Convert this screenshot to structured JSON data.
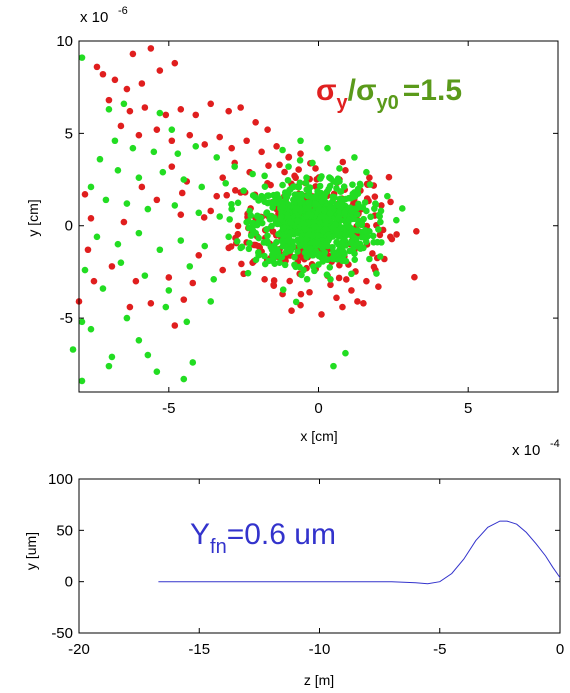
{
  "chart_data": [
    {
      "type": "scatter",
      "title": "",
      "xlabel": "x [cm]",
      "ylabel": "y [cm]",
      "x_exponent_label": "x 10",
      "x_exponent": "-4",
      "y_exponent_label": "x 10",
      "y_exponent": "-6",
      "xlim": [
        -8,
        8
      ],
      "ylim": [
        -9,
        10
      ],
      "xticks": [
        "-5",
        "0",
        "5"
      ],
      "yticks": [
        "10",
        "5",
        "0",
        "-5"
      ],
      "grid": false,
      "annotation": {
        "sigma": "σ",
        "sub_y": "y",
        "slash": "/",
        "sub_y0": "y0",
        "value": "=1.5",
        "color_red": "#e02020",
        "color_olive": "#5a9a1a"
      },
      "series": [
        {
          "color": "#e01e1e",
          "points": [
            [
              -7.4,
              8.6
            ],
            [
              -7.2,
              8.2
            ],
            [
              -6.8,
              7.9
            ],
            [
              -6.2,
              9.3
            ],
            [
              -5.6,
              9.6
            ],
            [
              -5.3,
              8.4
            ],
            [
              -4.8,
              8.8
            ],
            [
              -6.4,
              7.4
            ],
            [
              -5.9,
              7.7
            ],
            [
              -7.0,
              6.8
            ],
            [
              -6.3,
              6.2
            ],
            [
              -5.8,
              6.4
            ],
            [
              -5.1,
              6.0
            ],
            [
              -4.6,
              6.3
            ],
            [
              -4.1,
              6.0
            ],
            [
              -3.6,
              6.6
            ],
            [
              -3.0,
              6.2
            ],
            [
              -2.6,
              6.4
            ],
            [
              -2.1,
              5.6
            ],
            [
              -1.7,
              5.2
            ],
            [
              -6.6,
              5.4
            ],
            [
              -6.0,
              4.9
            ],
            [
              -5.4,
              5.2
            ],
            [
              -4.9,
              4.6
            ],
            [
              -4.3,
              4.9
            ],
            [
              -3.8,
              4.4
            ],
            [
              -3.3,
              4.8
            ],
            [
              -2.9,
              4.2
            ],
            [
              -2.4,
              4.6
            ],
            [
              -1.9,
              4.0
            ],
            [
              -1.4,
              4.3
            ],
            [
              -1.0,
              3.7
            ],
            [
              -0.6,
              3.9
            ],
            [
              -7.8,
              1.7
            ],
            [
              -8.0,
              -4.1
            ],
            [
              -7.7,
              -1.3
            ],
            [
              -7.6,
              0.4
            ],
            [
              -7.5,
              -3.0
            ],
            [
              -6.9,
              -2.2
            ],
            [
              -6.1,
              -3.0
            ],
            [
              -5.6,
              -4.2
            ],
            [
              -4.5,
              -4.0
            ],
            [
              -3.2,
              -2.4
            ],
            [
              -2.5,
              -2.6
            ],
            [
              -1.8,
              -2.9
            ],
            [
              -1.2,
              -3.7
            ],
            [
              -0.6,
              -4.3
            ],
            [
              0.1,
              -4.8
            ],
            [
              0.6,
              -3.9
            ],
            [
              1.1,
              -3.5
            ],
            [
              1.6,
              -3.0
            ],
            [
              1.9,
              -2.4
            ],
            [
              2.2,
              -1.8
            ],
            [
              2.0,
              -3.3
            ],
            [
              1.3,
              -4.1
            ],
            [
              0.4,
              -3.2
            ],
            [
              -0.3,
              -3.6
            ],
            [
              -1.5,
              -3.2
            ],
            [
              -2.2,
              -2.0
            ],
            [
              -5.0,
              -2.8
            ],
            [
              -4.8,
              -5.4
            ],
            [
              -6.3,
              -4.4
            ],
            [
              -4.0,
              -1.6
            ],
            [
              -3.6,
              0.8
            ],
            [
              -3.2,
              2.6
            ],
            [
              -2.8,
              3.4
            ],
            [
              -2.6,
              1.8
            ],
            [
              -2.3,
              2.9
            ],
            [
              -2.1,
              0.4
            ],
            [
              -1.9,
              -1.4
            ],
            [
              -1.6,
              2.2
            ],
            [
              -1.3,
              3.3
            ],
            [
              -1.1,
              -1.9
            ],
            [
              -0.8,
              2.7
            ],
            [
              -0.4,
              -2.3
            ],
            [
              -0.1,
              3.1
            ],
            [
              0.3,
              -2.7
            ],
            [
              0.7,
              2.5
            ],
            [
              1.0,
              -2.1
            ],
            [
              1.4,
              1.9
            ],
            [
              1.8,
              -1.5
            ],
            [
              2.1,
              1.1
            ],
            [
              2.4,
              -0.6
            ],
            [
              1.7,
              2.6
            ],
            [
              0.9,
              3.0
            ],
            [
              -0.5,
              1.4
            ],
            [
              -1.4,
              0.9
            ],
            [
              -2.4,
              -0.9
            ],
            [
              -3.0,
              -1.2
            ],
            [
              -3.4,
              1.6
            ],
            [
              -4.6,
              0.6
            ],
            [
              -4.4,
              2.4
            ],
            [
              -4.9,
              3.2
            ],
            [
              -5.4,
              1.4
            ],
            [
              -5.9,
              2.1
            ],
            [
              -6.5,
              0.2
            ],
            [
              -4.2,
              -3.1
            ],
            [
              -0.9,
              -4.6
            ],
            [
              0.8,
              -4.4
            ],
            [
              1.5,
              -4.2
            ]
          ]
        },
        {
          "color": "#22dd22",
          "points": [
            [
              -7.9,
              9.1
            ],
            [
              -7.0,
              6.3
            ],
            [
              -6.5,
              6.6
            ],
            [
              -5.3,
              6.1
            ],
            [
              -4.9,
              5.2
            ],
            [
              -6.8,
              4.6
            ],
            [
              -6.2,
              4.2
            ],
            [
              -5.5,
              4.0
            ],
            [
              -4.7,
              3.9
            ],
            [
              -4.1,
              4.3
            ],
            [
              -3.4,
              3.7
            ],
            [
              -2.8,
              3.2
            ],
            [
              -2.2,
              2.8
            ],
            [
              -7.3,
              3.6
            ],
            [
              -6.7,
              3.0
            ],
            [
              -6.0,
              2.6
            ],
            [
              -5.2,
              2.9
            ],
            [
              -4.5,
              2.5
            ],
            [
              -3.9,
              2.1
            ],
            [
              -3.1,
              2.3
            ],
            [
              -7.6,
              2.1
            ],
            [
              -7.1,
              1.4
            ],
            [
              -6.4,
              1.2
            ],
            [
              -5.7,
              0.9
            ],
            [
              -4.8,
              1.1
            ],
            [
              -4.0,
              0.7
            ],
            [
              -3.3,
              0.5
            ],
            [
              -7.4,
              -0.6
            ],
            [
              -6.7,
              -1.0
            ],
            [
              -6.0,
              -0.4
            ],
            [
              -5.3,
              -1.3
            ],
            [
              -4.6,
              -0.8
            ],
            [
              -3.8,
              -1.1
            ],
            [
              -3.0,
              -0.6
            ],
            [
              -7.8,
              -2.4
            ],
            [
              -7.2,
              -3.4
            ],
            [
              -6.6,
              -2.0
            ],
            [
              -5.8,
              -2.7
            ],
            [
              -5.0,
              -3.5
            ],
            [
              -4.3,
              -2.2
            ],
            [
              -3.5,
              -2.9
            ],
            [
              -7.9,
              -5.2
            ],
            [
              -8.2,
              -6.7
            ],
            [
              -7.9,
              -8.4
            ],
            [
              -7.0,
              -7.6
            ],
            [
              -6.9,
              -7.1
            ],
            [
              -6.0,
              -6.2
            ],
            [
              -5.7,
              -7.0
            ],
            [
              -5.4,
              -7.9
            ],
            [
              -4.2,
              -7.4
            ],
            [
              -4.5,
              -8.3
            ],
            [
              -6.4,
              -5.0
            ],
            [
              -5.1,
              -4.4
            ],
            [
              -4.4,
              -5.2
            ],
            [
              -3.6,
              -4.1
            ],
            [
              -7.6,
              -5.6
            ],
            [
              0.5,
              -7.6
            ],
            [
              0.9,
              -6.9
            ],
            [
              1.2,
              3.7
            ],
            [
              0.3,
              4.2
            ],
            [
              -0.6,
              4.6
            ],
            [
              -1.2,
              4.1
            ],
            [
              1.6,
              2.9
            ],
            [
              2.3,
              1.6
            ],
            [
              2.6,
              0.3
            ],
            [
              2.1,
              -0.9
            ],
            [
              1.7,
              -1.8
            ],
            [
              1.1,
              -2.6
            ],
            [
              0.4,
              -2.9
            ],
            [
              -0.5,
              -2.4
            ],
            [
              -1.3,
              -2.0
            ],
            [
              -2.0,
              -1.6
            ],
            [
              -2.6,
              -1.2
            ],
            [
              -2.9,
              0.9
            ],
            [
              -2.5,
              1.9
            ],
            [
              -1.8,
              2.7
            ],
            [
              -1.0,
              3.2
            ],
            [
              -0.2,
              3.4
            ],
            [
              0.7,
              3.1
            ],
            [
              1.4,
              2.2
            ],
            [
              1.9,
              1.2
            ],
            [
              2.0,
              -0.2
            ],
            [
              1.5,
              -1.2
            ],
            [
              0.8,
              -1.9
            ],
            [
              0.0,
              -2.1
            ],
            [
              -0.8,
              -1.7
            ],
            [
              -1.5,
              -1.1
            ],
            [
              -2.1,
              -0.4
            ],
            [
              -2.3,
              0.8
            ],
            [
              -1.9,
              1.6
            ],
            [
              -1.2,
              2.2
            ],
            [
              -0.4,
              2.6
            ],
            [
              0.5,
              2.4
            ],
            [
              1.2,
              1.8
            ],
            [
              1.6,
              0.8
            ],
            [
              1.7,
              -0.3
            ],
            [
              1.3,
              -1.1
            ],
            [
              0.6,
              -1.5
            ],
            [
              -0.2,
              -1.6
            ],
            [
              -1.0,
              -1.2
            ]
          ]
        }
      ],
      "cluster": {
        "center": [
          -0.2,
          0.1
        ],
        "spread": [
          0.95,
          1.05
        ],
        "count": 700,
        "color": "#22dd22"
      }
    },
    {
      "type": "line",
      "title": "",
      "xlabel": "z [m]",
      "ylabel": "y [um]",
      "xlim": [
        -20,
        0
      ],
      "ylim": [
        -50,
        100
      ],
      "xticks": [
        "-20",
        "-15",
        "-10",
        "-5",
        "0"
      ],
      "yticks": [
        "100",
        "50",
        "0",
        "-50"
      ],
      "grid": false,
      "annotation": {
        "main": "Y",
        "sub": "fn",
        "value": "=0.6 um",
        "color": "#3333cc"
      },
      "series": [
        {
          "color": "#3333cc",
          "x": [
            -16.7,
            -15,
            -12,
            -9,
            -7,
            -6,
            -5.5,
            -5.0,
            -4.5,
            -4.0,
            -3.5,
            -3.0,
            -2.5,
            -2.2,
            -1.8,
            -1.4,
            -1.0,
            -0.6,
            -0.3,
            0.0
          ],
          "y": [
            0,
            0,
            0,
            0,
            0,
            -1,
            -2,
            0,
            8,
            22,
            40,
            53,
            59,
            59,
            56,
            48,
            37,
            25,
            14,
            4
          ]
        }
      ]
    }
  ]
}
